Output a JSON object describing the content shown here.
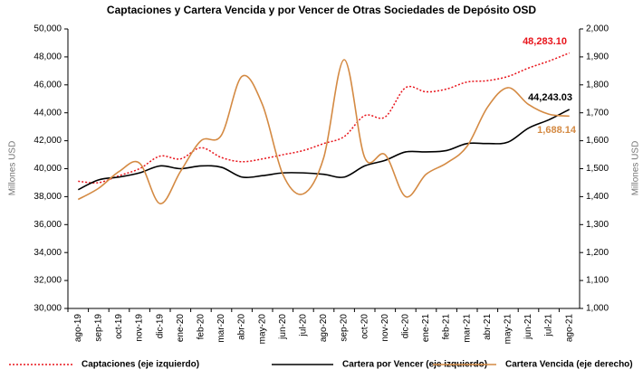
{
  "chart_data": {
    "type": "line",
    "title": "Captaciones y Cartera Vencida y por Vencer de Otras Sociedades de Depósito OSD",
    "y_label": "Millones USD",
    "y2_label": "Millones USD",
    "categories": [
      "ago-19",
      "sep-19",
      "oct-19",
      "nov-19",
      "dic-19",
      "ene-20",
      "feb-20",
      "mar-20",
      "abr-20",
      "may-20",
      "jun-20",
      "jul-20",
      "ago-20",
      "sep-20",
      "oct-20",
      "nov-20",
      "dic-20",
      "ene-21",
      "feb-21",
      "mar-21",
      "abr-21",
      "may-21",
      "jun-21",
      "jul-21",
      "ago-21"
    ],
    "series": [
      {
        "name": "Captaciones (eje izquierdo)",
        "color": "#e8141b",
        "dash": "dotted",
        "axis": "y",
        "values": [
          39100,
          39000,
          39500,
          40000,
          40900,
          40700,
          41500,
          40800,
          40500,
          40700,
          41000,
          41300,
          41800,
          42300,
          43800,
          43700,
          45800,
          45500,
          45700,
          46200,
          46300,
          46600,
          47200,
          47700,
          48283.1
        ],
        "value_labels": [
          null,
          null,
          null,
          null,
          null,
          null,
          null,
          null,
          null,
          null,
          null,
          null,
          null,
          null,
          null,
          null,
          null,
          null,
          null,
          null,
          null,
          null,
          null,
          null,
          "48,283.10"
        ]
      },
      {
        "name": "Cartera por Vencer (eje izquierdo)",
        "color": "#000000",
        "dash": "solid",
        "axis": "y",
        "values": [
          38500,
          39200,
          39400,
          39700,
          40200,
          40000,
          40200,
          40100,
          39400,
          39500,
          39700,
          39700,
          39600,
          39400,
          40200,
          40600,
          41200,
          41200,
          41300,
          41800,
          41800,
          41900,
          42900,
          43500,
          44243.03
        ],
        "value_labels": [
          null,
          null,
          null,
          null,
          null,
          null,
          null,
          null,
          null,
          null,
          null,
          null,
          null,
          null,
          null,
          null,
          null,
          null,
          null,
          null,
          null,
          null,
          null,
          null,
          "44,243.03"
        ]
      },
      {
        "name": "Cartera Vencida (eje derecho)",
        "color": "#d48a43",
        "dash": "solid",
        "axis": "y2",
        "values": [
          1390,
          1430,
          1490,
          1520,
          1375,
          1490,
          1600,
          1620,
          1830,
          1730,
          1480,
          1410,
          1540,
          1890,
          1540,
          1550,
          1400,
          1480,
          1520,
          1580,
          1720,
          1790,
          1730,
          1695,
          1688.14
        ],
        "value_labels": [
          null,
          null,
          null,
          null,
          null,
          null,
          null,
          null,
          null,
          null,
          null,
          null,
          null,
          null,
          null,
          null,
          null,
          null,
          null,
          null,
          null,
          null,
          null,
          null,
          "1,688.14"
        ]
      }
    ],
    "ylim": [
      30000,
      50000
    ],
    "yticks": [
      {
        "value": 30000,
        "label": "30,000"
      },
      {
        "value": 32000,
        "label": "32,000"
      },
      {
        "value": 34000,
        "label": "34,000"
      },
      {
        "value": 36000,
        "label": "36,000"
      },
      {
        "value": 38000,
        "label": "38,000"
      },
      {
        "value": 40000,
        "label": "40,000"
      },
      {
        "value": 42000,
        "label": "42,000"
      },
      {
        "value": 44000,
        "label": "44,000"
      },
      {
        "value": 46000,
        "label": "46,000"
      },
      {
        "value": 48000,
        "label": "48,000"
      },
      {
        "value": 50000,
        "label": "50,000"
      }
    ],
    "y2lim": [
      1000,
      2000
    ],
    "y2ticks": [
      {
        "value": 1000,
        "label": "1,000"
      },
      {
        "value": 1100,
        "label": "1,100"
      },
      {
        "value": 1200,
        "label": "1,200"
      },
      {
        "value": 1300,
        "label": "1,300"
      },
      {
        "value": 1400,
        "label": "1,400"
      },
      {
        "value": 1500,
        "label": "1,500"
      },
      {
        "value": 1600,
        "label": "1,600"
      },
      {
        "value": 1700,
        "label": "1,700"
      },
      {
        "value": 1800,
        "label": "1,800"
      },
      {
        "value": 1900,
        "label": "1,900"
      },
      {
        "value": 2000,
        "label": "2,000"
      }
    ],
    "grid": false,
    "legend": "bottom"
  }
}
